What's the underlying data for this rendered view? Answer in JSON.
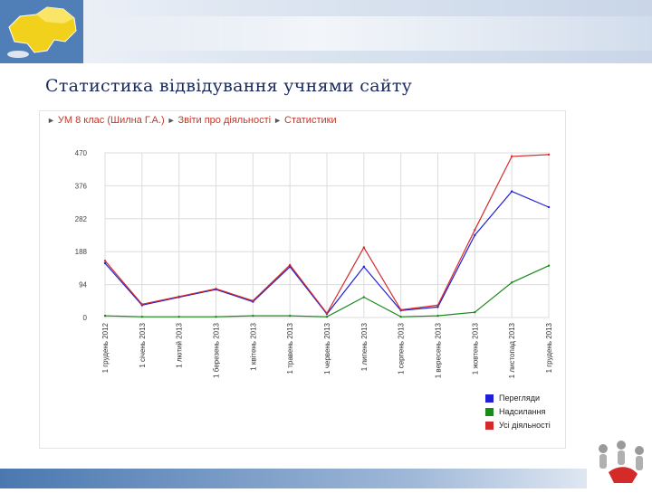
{
  "title": "Статистика відвідування учнями сайту",
  "breadcrumb": {
    "item1": "УМ 8 клас (Шилна Г.А.)",
    "item2": "Звіти про діяльності",
    "item3": "Статистики"
  },
  "colors": {
    "views": "#1f1fd6",
    "posts": "#1a8a1a",
    "all": "#d42a2a",
    "grid": "#dcdcdc",
    "title": "#1b2a5c"
  },
  "chart_data": {
    "type": "line",
    "categories": [
      "1 грудень 2012",
      "1 січень 2013",
      "1 лютий 2013",
      "1 березень 2013",
      "1 квітень 2013",
      "1 травень 2013",
      "1 червень 2013",
      "1 липень 2013",
      "1 серпень 2013",
      "1 вересень 2013",
      "1 жовтень 2013",
      "1 листопад 2013",
      "1 грудень 2013"
    ],
    "yticks": [
      "0",
      "94",
      "188",
      "282",
      "376",
      "470"
    ],
    "ylim": [
      0,
      470
    ],
    "grid": true,
    "legend_position": "bottom-right",
    "series": [
      {
        "name": "Перегляди",
        "color": "#1f1fd6",
        "values": [
          155,
          35,
          58,
          80,
          45,
          145,
          10,
          145,
          20,
          30,
          235,
          360,
          315
        ]
      },
      {
        "name": "Надсилання",
        "color": "#1a8a1a",
        "values": [
          5,
          2,
          2,
          2,
          5,
          5,
          2,
          58,
          2,
          5,
          15,
          100,
          148
        ]
      },
      {
        "name": "Усі діяльності",
        "color": "#d42a2a",
        "values": [
          162,
          38,
          60,
          82,
          48,
          150,
          12,
          200,
          22,
          35,
          250,
          460,
          465
        ]
      }
    ]
  }
}
